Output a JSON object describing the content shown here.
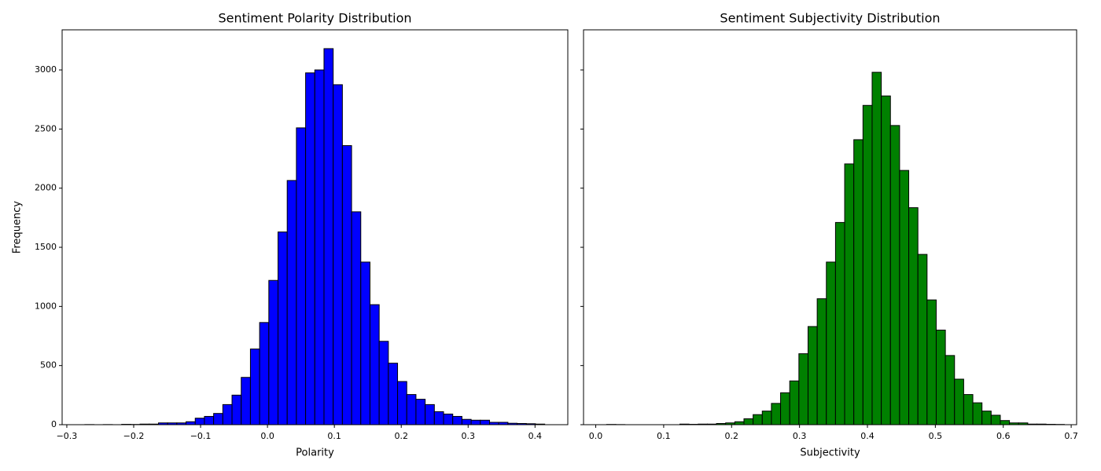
{
  "chart_data": [
    {
      "type": "histogram",
      "title": "Sentiment Polarity Distribution",
      "xlabel": "Polarity",
      "ylabel": "Frequency",
      "color": "#0000ff",
      "edgecolor": "#000000",
      "bins": [
        -0.273,
        -0.25925,
        -0.2455,
        -0.23175,
        -0.218,
        -0.20425,
        -0.1905,
        -0.17675,
        -0.163,
        -0.14925,
        -0.1355,
        -0.12175,
        -0.108,
        -0.09425,
        -0.0805,
        -0.06675,
        -0.053,
        -0.03925,
        -0.0255,
        -0.01175,
        0.002,
        0.01575,
        0.0295,
        0.04325,
        0.057,
        0.07075,
        0.0845,
        0.09825,
        0.112,
        0.12575,
        0.1395,
        0.15325,
        0.167,
        0.18075,
        0.1945,
        0.20825,
        0.222,
        0.23575,
        0.2495,
        0.26325,
        0.277,
        0.29075,
        0.3045,
        0.31825,
        0.332,
        0.34575,
        0.3595,
        0.37325,
        0.387,
        0.40075,
        0.4145
      ],
      "values": [
        1,
        0,
        1,
        0,
        3,
        2,
        5,
        5,
        15,
        15,
        15,
        25,
        55,
        70,
        95,
        170,
        250,
        400,
        640,
        864,
        1220,
        1630,
        2065,
        2510,
        2975,
        3000,
        3180,
        2875,
        2360,
        1800,
        1375,
        1015,
        705,
        520,
        365,
        255,
        215,
        170,
        110,
        90,
        70,
        45,
        38,
        38,
        20,
        20,
        12,
        10,
        8,
        5
      ],
      "xlim": [
        -0.307,
        0.449
      ],
      "xticks": [
        {
          "value": -0.3,
          "label": "−0.3"
        },
        {
          "value": -0.2,
          "label": "−0.2"
        },
        {
          "value": -0.1,
          "label": "−0.1"
        },
        {
          "value": 0,
          "label": "0.0"
        },
        0.1,
        0.2,
        0.3,
        0.4
      ],
      "ylim": [
        0,
        3339
      ],
      "yticks": [
        0,
        500,
        1000,
        1500,
        2000,
        2500,
        3000
      ],
      "ytick_labels": true
    },
    {
      "type": "histogram",
      "title": "Sentiment Subjectivity Distribution",
      "xlabel": "Subjectivity",
      "color": "#008000",
      "edgecolor": "#000000",
      "bins": [
        0.016,
        0.02948,
        0.04296,
        0.05644,
        0.06992,
        0.0834,
        0.09688,
        0.11036,
        0.12384,
        0.13732,
        0.1508,
        0.16428,
        0.17776,
        0.19124,
        0.20472,
        0.2182,
        0.23168,
        0.24516,
        0.25864,
        0.27212,
        0.2856,
        0.29908,
        0.31256,
        0.32604,
        0.33952,
        0.353,
        0.36648,
        0.37996,
        0.39344,
        0.40692,
        0.4204,
        0.43388,
        0.44736,
        0.46084,
        0.47432,
        0.4878,
        0.50128,
        0.51476,
        0.52824,
        0.54172,
        0.5552,
        0.56868,
        0.58216,
        0.59564,
        0.60912,
        0.6226,
        0.63608,
        0.64956,
        0.66304,
        0.67652,
        0.69
      ],
      "values": [
        2,
        1,
        0,
        0,
        0,
        0,
        0,
        0,
        5,
        3,
        5,
        5,
        10,
        15,
        25,
        50,
        85,
        115,
        180,
        270,
        370,
        600,
        830,
        1065,
        1375,
        1710,
        2205,
        2410,
        2700,
        2980,
        2780,
        2530,
        2150,
        1835,
        1440,
        1055,
        800,
        585,
        385,
        255,
        185,
        115,
        80,
        35,
        15,
        15,
        5,
        5,
        3,
        2
      ],
      "xlim": [
        -0.018,
        0.708
      ],
      "xticks": [
        {
          "value": 0,
          "label": "0.0"
        },
        0.1,
        0.2,
        0.3,
        0.4,
        0.5,
        0.6,
        0.7
      ],
      "ylim": [
        0,
        3339
      ],
      "yticks": [
        0,
        500,
        1000,
        1500,
        2000,
        2500,
        3000
      ],
      "ytick_labels": false
    }
  ]
}
